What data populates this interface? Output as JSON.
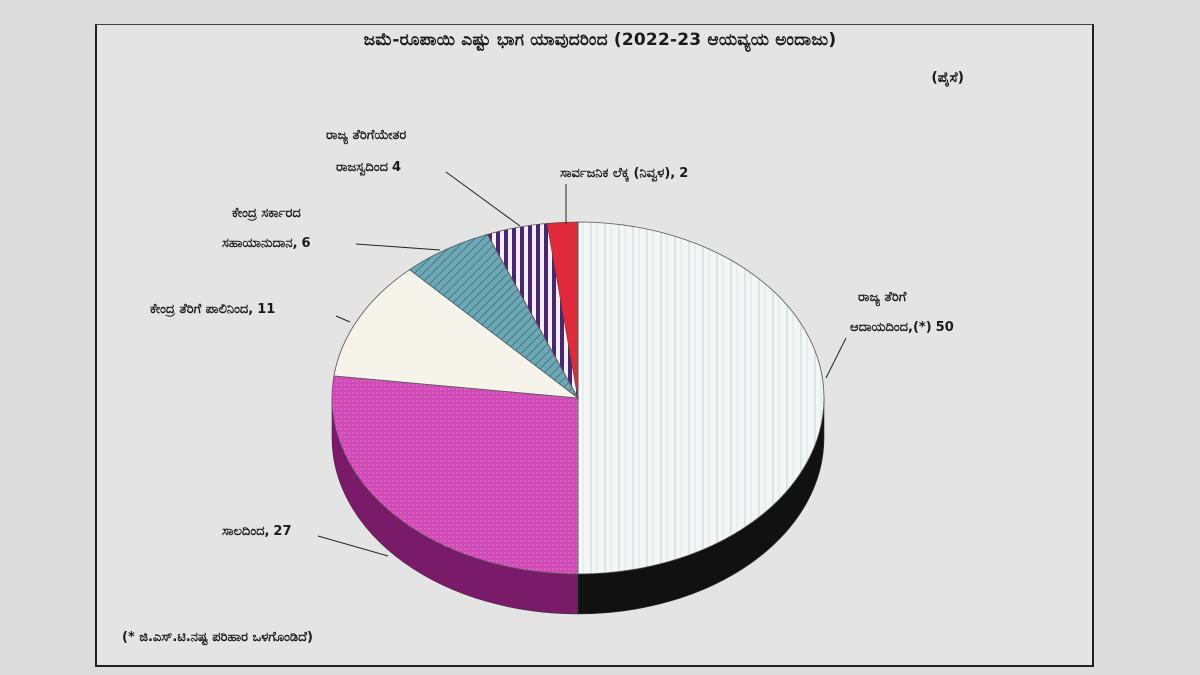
{
  "chart_data": {
    "type": "pie",
    "title": "ಜಮೆ-ರೂಪಾಯಿ ಎಷ್ಟು ಭಾಗ ಯಾವುದರಿಂದ (2022-23 ಆಯವ್ಯಯ ಅಂದಾಜು)",
    "unit": "(ಪೈಸೆ)",
    "footnote": "(* ಜಿ.ಎಸ್.ಟಿ.ನಷ್ಟ ಪರಿಹಾರ ಒಳಗೊಂಡಿದೆ)",
    "slices": [
      {
        "label_line1": "ರಾಜ್ಯ ತೆರಿಗೆ",
        "label_line2": "ಆದಾಯದಿಂದ,(*)",
        "value": 50,
        "color": "#f4f6f6"
      },
      {
        "label_line1": "ಸಾಲದಿಂದ,",
        "label_line2": "",
        "value": 27,
        "color": "#d24ab8"
      },
      {
        "label_line1": "ಕೇಂದ್ರ ತೆರಿಗೆ ಪಾಲಿನಿಂದ,",
        "label_line2": "",
        "value": 11,
        "color": "#f6f4ea"
      },
      {
        "label_line1": "ಕೇಂದ್ರ ಸರ್ಕಾರದ",
        "label_line2": "ಸಹಾಯಾನುದಾನ,",
        "value": 6,
        "color": "#6fa8b4"
      },
      {
        "label_line1": "ರಾಜ್ಯ ತೆರಿಗೆಯೇತರ",
        "label_line2": "ರಾಜಸ್ವದಿಂದ",
        "value": 4,
        "color": "#4a2670"
      },
      {
        "label_line1": "ಸಾರ್ವಜನಿಕ ಲೆಕ್ಕ (ನಿವ್ವಳ),",
        "label_line2": "",
        "value": 2,
        "color": "#e02a3c"
      }
    ]
  }
}
